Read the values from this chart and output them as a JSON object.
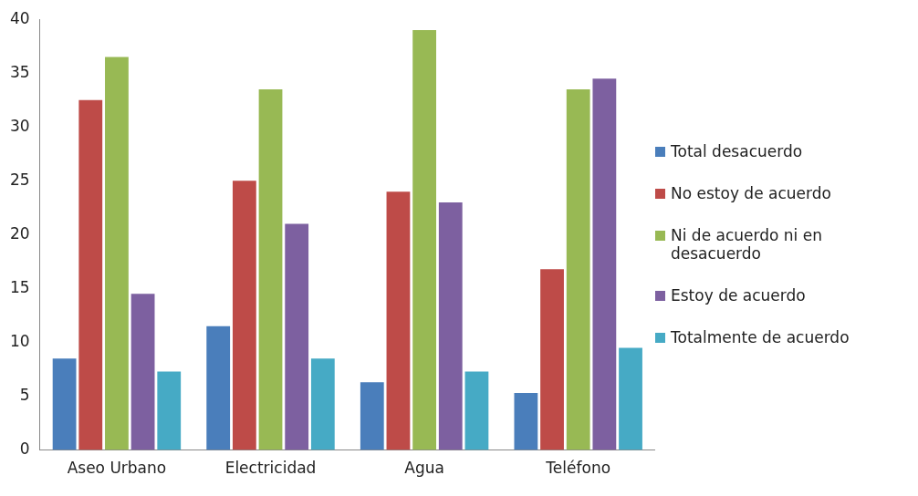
{
  "chart_data": {
    "type": "bar",
    "categories": [
      "Aseo Urbano",
      "Electricidad",
      "Agua",
      "Teléfono"
    ],
    "series": [
      {
        "name": "Total desacuerdo",
        "color": "#4a7ebb",
        "values": [
          8.5,
          11.5,
          6.3,
          5.3
        ]
      },
      {
        "name": "No estoy de acuerdo",
        "color": "#be4b48",
        "values": [
          32.5,
          25,
          24,
          16.8
        ]
      },
      {
        "name": "Ni de acuerdo ni en desacuerdo",
        "color": "#98b954",
        "values": [
          36.5,
          33.5,
          39,
          33.5
        ]
      },
      {
        "name": "Estoy de acuerdo",
        "color": "#7d60a0",
        "values": [
          14.5,
          21,
          23,
          34.5
        ]
      },
      {
        "name": "Totalmente de acuerdo",
        "color": "#46aac5",
        "values": [
          7.3,
          8.5,
          7.3,
          9.5
        ]
      }
    ],
    "ylim": [
      0,
      40
    ],
    "yticks": [
      0,
      5,
      10,
      15,
      20,
      25,
      30,
      35,
      40
    ],
    "grid": false,
    "legend": "right"
  }
}
